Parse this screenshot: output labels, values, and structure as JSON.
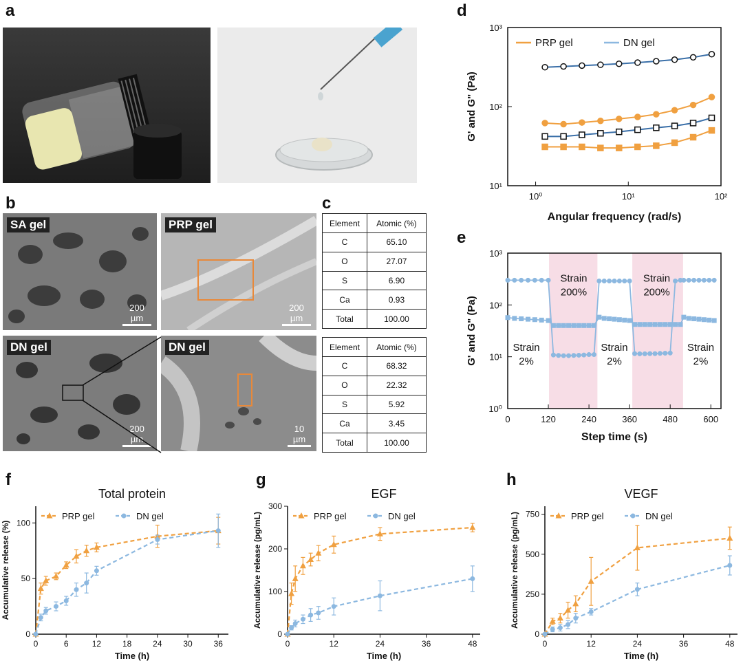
{
  "panels": {
    "a": "a",
    "b": "b",
    "c": "c",
    "d": "d",
    "e": "e",
    "f": "f",
    "g": "g",
    "h": "h"
  },
  "sem": {
    "sa": {
      "tag": "SA gel",
      "scale": "200 µm"
    },
    "prp": {
      "tag": "PRP gel",
      "scale": "200 µm"
    },
    "dn1": {
      "tag": "DN gel",
      "scale": "200 µm"
    },
    "dn2": {
      "tag": "DN gel",
      "scale": "10 µm"
    }
  },
  "tables": {
    "header": [
      "Element",
      "Atomic (%)"
    ],
    "t1": [
      [
        "C",
        "65.10"
      ],
      [
        "O",
        "27.07"
      ],
      [
        "S",
        "6.90"
      ],
      [
        "Ca",
        "0.93"
      ],
      [
        "Total",
        "100.00"
      ]
    ],
    "t2": [
      [
        "C",
        "68.32"
      ],
      [
        "O",
        "22.32"
      ],
      [
        "S",
        "5.92"
      ],
      [
        "Ca",
        "3.45"
      ],
      [
        "Total",
        "100.00"
      ]
    ]
  },
  "colors": {
    "prp": "#f0a040",
    "dn": "#8cb8e0",
    "dn_dark": "#3a6fa8",
    "pink": "#f7dde6"
  },
  "chart_data": [
    {
      "id": "d",
      "type": "line",
      "xlabel": "Angular frequency (rad/s)",
      "ylabel": "G' and G\" (Pa)",
      "xscale": "log",
      "yscale": "log",
      "xlim": [
        0.5,
        100
      ],
      "ylim": [
        10,
        1000
      ],
      "xticks": [
        "10⁰",
        "10¹",
        "10²"
      ],
      "yticks": [
        "10¹",
        "10²",
        "10³"
      ],
      "legend": [
        "PRP gel",
        "DN gel"
      ],
      "x": [
        1.26,
        2,
        3.16,
        5.01,
        7.94,
        12.6,
        20,
        31.6,
        50.1,
        79.4
      ],
      "series": [
        {
          "name": "DN gel G'",
          "values": [
            315,
            322,
            330,
            338,
            348,
            360,
            375,
            392,
            420,
            460
          ]
        },
        {
          "name": "PRP gel G'",
          "values": [
            62,
            60,
            63,
            66,
            70,
            74,
            80,
            90,
            105,
            132
          ]
        },
        {
          "name": "DN gel G\"",
          "values": [
            42,
            42,
            44,
            46,
            48,
            51,
            54,
            57,
            62,
            72
          ]
        },
        {
          "name": "PRP gel G\"",
          "values": [
            31,
            31,
            31,
            30,
            30,
            31,
            32,
            35,
            41,
            50
          ]
        }
      ]
    },
    {
      "id": "e",
      "type": "line",
      "xlabel": "Step time (s)",
      "ylabel": "G' and G\" (Pa)",
      "yscale": "log",
      "xlim": [
        0,
        630
      ],
      "ylim": [
        1,
        1000
      ],
      "xticks": [
        "0",
        "120",
        "240",
        "360",
        "480",
        "600"
      ],
      "yticks": [
        "10⁰",
        "10¹",
        "10²",
        "10³"
      ],
      "shaded": [
        [
          122,
          265
        ],
        [
          368,
          518
        ]
      ],
      "annotations": [
        {
          "l1": "Strain",
          "l2": "2%",
          "x": 55,
          "y": 13
        },
        {
          "l1": "Strain",
          "l2": "200%",
          "x": 195,
          "y": 280
        },
        {
          "l1": "Strain",
          "l2": "2%",
          "x": 315,
          "y": 13
        },
        {
          "l1": "Strain",
          "l2": "200%",
          "x": 440,
          "y": 280
        },
        {
          "l1": "Strain",
          "l2": "2%",
          "x": 570,
          "y": 13
        }
      ],
      "series": [
        {
          "name": "G'",
          "x": [
            0,
            20,
            40,
            60,
            80,
            100,
            120,
            135,
            150,
            165,
            180,
            195,
            210,
            225,
            240,
            255,
            270,
            285,
            300,
            315,
            330,
            345,
            360,
            375,
            390,
            405,
            420,
            435,
            450,
            465,
            480,
            495,
            510,
            520,
            535,
            550,
            565,
            580,
            595,
            610
          ],
          "values": [
            300,
            300,
            300,
            300,
            300,
            300,
            300,
            10.8,
            10.6,
            10.5,
            10.5,
            10.6,
            10.7,
            10.8,
            11,
            11,
            290,
            290,
            290,
            290,
            290,
            290,
            290,
            11.5,
            11.4,
            11.4,
            11.5,
            11.5,
            11.6,
            11.7,
            11.8,
            290,
            300,
            300,
            300,
            300,
            300,
            300,
            300,
            300
          ]
        },
        {
          "name": "G\"",
          "x": [
            0,
            20,
            40,
            60,
            80,
            100,
            120,
            135,
            150,
            165,
            180,
            195,
            210,
            225,
            240,
            255,
            270,
            285,
            300,
            315,
            330,
            345,
            360,
            375,
            390,
            405,
            420,
            435,
            450,
            465,
            480,
            495,
            510,
            520,
            535,
            550,
            565,
            580,
            595,
            610
          ],
          "values": [
            57,
            55,
            54,
            53,
            52,
            51,
            50,
            40,
            40,
            40,
            40,
            40,
            40,
            40,
            40,
            40,
            58,
            55,
            54,
            53,
            52,
            51,
            50,
            42,
            42,
            42,
            42,
            42,
            42,
            42,
            42,
            42,
            42,
            58,
            55,
            54,
            53,
            52,
            51,
            50
          ]
        }
      ]
    },
    {
      "id": "f",
      "type": "line",
      "title": "Total protein",
      "xlabel": "Time (h)",
      "ylabel": "Accumulative release (%)",
      "xlim": [
        0,
        38
      ],
      "ylim": [
        0,
        115
      ],
      "xticks": [
        0,
        6,
        12,
        18,
        24,
        30,
        36
      ],
      "yticks": [
        0,
        50,
        100
      ],
      "legend": [
        "PRP gel",
        "DN gel"
      ],
      "series": [
        {
          "name": "PRP gel",
          "x": [
            0,
            1,
            2,
            4,
            6,
            8,
            10,
            12,
            24,
            36
          ],
          "values": [
            0,
            41,
            48,
            52,
            62,
            70,
            75,
            78,
            88,
            93
          ],
          "err": [
            0,
            5,
            4,
            3,
            3,
            6,
            5,
            4,
            10,
            12
          ]
        },
        {
          "name": "DN gel",
          "x": [
            0,
            1,
            2,
            4,
            6,
            8,
            10,
            12,
            24,
            36
          ],
          "values": [
            0,
            15,
            21,
            25,
            30,
            40,
            46,
            57,
            85,
            93
          ],
          "err": [
            0,
            3,
            3,
            4,
            4,
            6,
            9,
            4,
            4,
            15
          ]
        }
      ]
    },
    {
      "id": "g",
      "type": "line",
      "title": "EGF",
      "xlabel": "Time (h)",
      "ylabel": "Accumulative release (pg/mL)",
      "xlim": [
        0,
        50
      ],
      "ylim": [
        0,
        300
      ],
      "xticks": [
        0,
        12,
        24,
        36,
        48
      ],
      "yticks": [
        0,
        100,
        200,
        300
      ],
      "legend": [
        "PRP gel",
        "DN gel"
      ],
      "series": [
        {
          "name": "PRP gel",
          "x": [
            0,
            1,
            2,
            4,
            6,
            8,
            12,
            24,
            48
          ],
          "values": [
            0,
            95,
            130,
            160,
            175,
            190,
            210,
            235,
            250
          ],
          "err": [
            0,
            25,
            30,
            20,
            15,
            18,
            20,
            15,
            10
          ]
        },
        {
          "name": "DN gel",
          "x": [
            0,
            1,
            2,
            4,
            6,
            8,
            12,
            24,
            48
          ],
          "values": [
            0,
            15,
            25,
            35,
            45,
            50,
            65,
            90,
            130
          ],
          "err": [
            0,
            5,
            8,
            10,
            15,
            15,
            20,
            35,
            30
          ]
        }
      ]
    },
    {
      "id": "h",
      "type": "line",
      "title": "VEGF",
      "xlabel": "Time (h)",
      "ylabel": "Accumulative release (pg/mL)",
      "xlim": [
        0,
        50
      ],
      "ylim": [
        0,
        800
      ],
      "xticks": [
        0,
        12,
        24,
        36,
        48
      ],
      "yticks": [
        0,
        250,
        500,
        750
      ],
      "legend": [
        "PRP gel",
        "DN gel"
      ],
      "series": [
        {
          "name": "PRP gel",
          "x": [
            0,
            2,
            4,
            6,
            8,
            12,
            24,
            48
          ],
          "values": [
            0,
            80,
            100,
            150,
            190,
            330,
            540,
            600
          ],
          "err": [
            0,
            20,
            30,
            50,
            50,
            150,
            140,
            70
          ]
        },
        {
          "name": "DN gel",
          "x": [
            0,
            2,
            4,
            6,
            8,
            12,
            24,
            48
          ],
          "values": [
            0,
            30,
            40,
            60,
            100,
            140,
            280,
            430
          ],
          "err": [
            0,
            15,
            20,
            25,
            30,
            20,
            40,
            60
          ]
        }
      ]
    }
  ]
}
